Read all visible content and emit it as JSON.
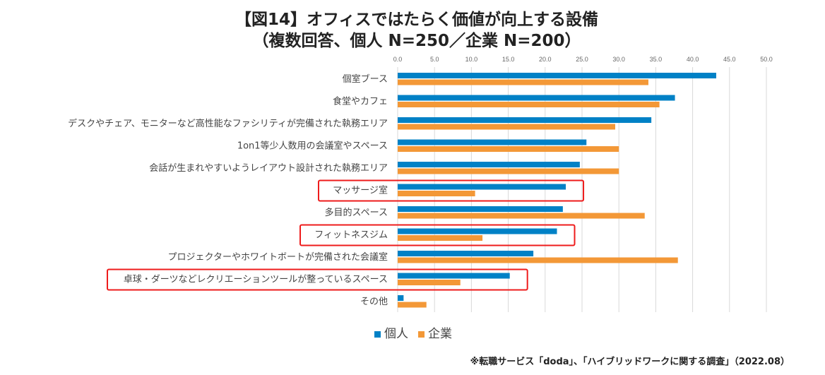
{
  "chart_data": {
    "type": "bar",
    "orientation": "horizontal",
    "title": "【図14】オフィスではたらく価値が向上する設備",
    "subtitle": "（複数回答、個人 N=250／企業 N=200）",
    "categories": [
      "個室ブース",
      "食堂やカフェ",
      "デスクやチェア、モニターなど高性能なファシリティが完備された執務エリア",
      "1on1等少人数用の会議室やスペース",
      "会話が生まれやすいようレイアウト設計された執務エリア",
      "マッサージ室",
      "多目的スペース",
      "フィットネスジム",
      "プロジェクターやホワイトボートが完備された会議室",
      "卓球・ダーツなどレクリエーションツールが整っているスペース",
      "その他"
    ],
    "series": [
      {
        "name": "個人",
        "color": "#0081C6",
        "values": [
          43.2,
          37.6,
          34.4,
          25.6,
          24.7,
          22.8,
          22.4,
          21.6,
          18.4,
          15.2,
          0.8
        ]
      },
      {
        "name": "企業",
        "color": "#F39837",
        "values": [
          34.0,
          35.5,
          29.5,
          30.0,
          30.0,
          10.5,
          33.5,
          11.5,
          38.0,
          8.5,
          3.9
        ]
      }
    ],
    "xlim": [
      0,
      50
    ],
    "ticks": [
      "0.0",
      "5.0",
      "10.0",
      "15.0",
      "20.0",
      "25.0",
      "30.0",
      "35.0",
      "40.0",
      "45.0",
      "50.0"
    ],
    "highlighted": [
      "マッサージ室",
      "フィットネスジム",
      "卓球・ダーツなどレクリエーションツールが整っているスペース"
    ],
    "legend_position": "bottom",
    "grid": true
  },
  "source": "※転職サービス「doda」、「ハイブリッドワークに関する調査」（2022.08）"
}
